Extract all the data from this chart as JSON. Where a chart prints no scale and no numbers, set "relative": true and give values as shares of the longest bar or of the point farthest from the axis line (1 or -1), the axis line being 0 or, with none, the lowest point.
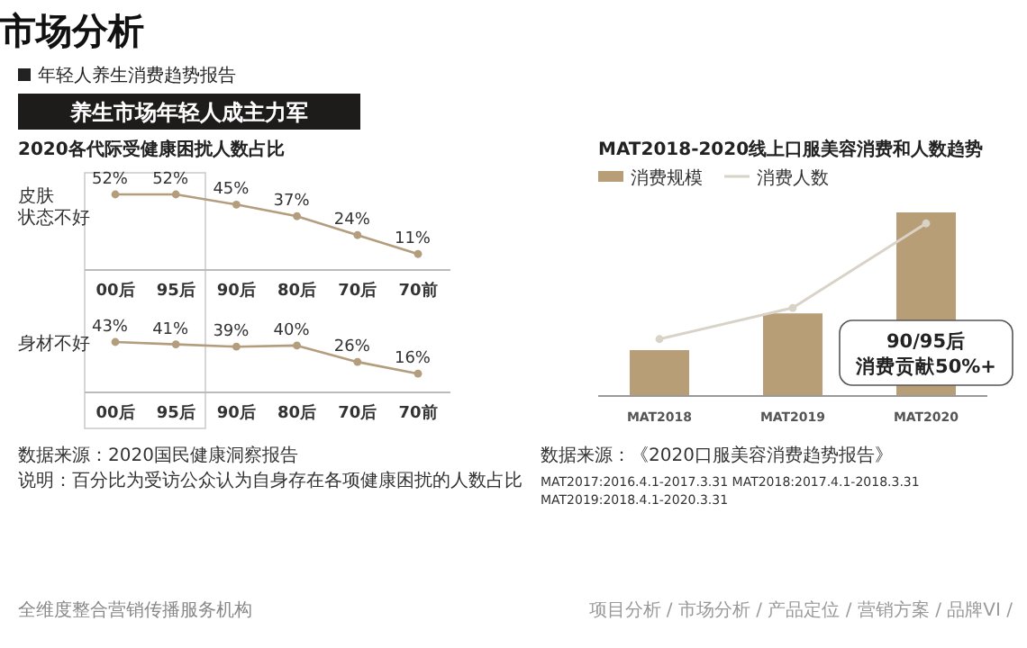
{
  "chart_data": [
    {
      "type": "line",
      "title": "2020各代际受健康困扰人数占比",
      "categories": [
        "00后",
        "95后",
        "90后",
        "80后",
        "70后",
        "70前"
      ],
      "marker": "circle",
      "line_style": "solid",
      "tick_labels": "x",
      "series": [
        {
          "name": "皮肤状态不好",
          "color": "#b39d7d",
          "values": [
            52,
            52,
            45,
            37,
            24,
            11
          ],
          "value_labels": [
            "52%",
            "52%",
            "45%",
            "37%",
            "24%",
            "11%"
          ]
        }
      ],
      "annotations": [
        "市场分析",
        "年轻人养生消费趋势报告",
        "养生市场年轻人成主力军",
        "数据来源：2020国民健康洞察报告",
        "说明：百分比为受访公众认为自身存在各项健康困扰的人数占比",
        "全维度整合营销传播服务机构",
        "项目分析 / 市场分析 / 产品定位 / 营销方案 / 品牌VI /"
      ]
    },
    {
      "type": "line",
      "categories": [
        "00后",
        "95后",
        "90后",
        "80后",
        "70后",
        "70前"
      ],
      "marker": "circle",
      "line_style": "solid",
      "tick_labels": "x",
      "series": [
        {
          "name": "身材不好",
          "color": "#b39d7d",
          "values": [
            43,
            41,
            39,
            40,
            26,
            16
          ],
          "value_labels": [
            "43%",
            "41%",
            "39%",
            "40%",
            "26%",
            "16%"
          ]
        }
      ]
    },
    {
      "type": "bar",
      "title": "MAT2018-2020线上口服美容消费和人数趋势",
      "categories": [
        "MAT2018",
        "MAT2019",
        "MAT2020"
      ],
      "relative": true,
      "legend": "top left",
      "tick_labels": "x",
      "series": [
        {
          "name": "消费规模",
          "type": "bar",
          "color": "#b89e77",
          "values": [
            0.25,
            0.45,
            1
          ]
        },
        {
          "name": "消费人数",
          "type": "line",
          "color": "#d9d2c7",
          "marker": "circle",
          "values": [
            0.31,
            0.48,
            0.94
          ]
        }
      ],
      "annotations": [
        "90/95后",
        "消费贡献50%+",
        "数据来源：《2020口服美容消费趋势报告》",
        "MAT2017:2016.4.1-2017.3.31  MAT2018:2017.4.1-2018.3.31  MAT2019:2018.4.1-2020.3.31"
      ]
    }
  ]
}
